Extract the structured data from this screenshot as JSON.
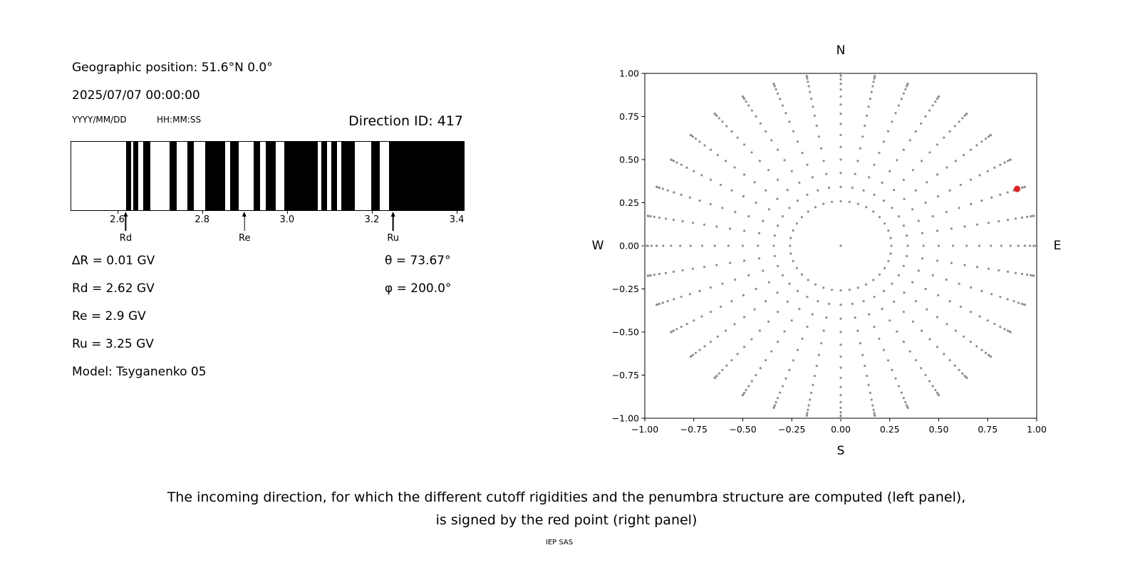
{
  "left_panel": {
    "geo_position": "Geographic position: 51.6°N 0.0°",
    "datetime": "2025/07/07 00:00:00",
    "date_format_label": "YYYY/MM/DD",
    "time_format_label": "HH:MM:SS",
    "direction_id_label": "Direction ID: 417",
    "params_left": [
      "∆R = 0.01 GV",
      "Rd = 2.62 GV",
      "Re = 2.9 GV",
      "Ru = 3.25 GV",
      "Model: Tsyganenko 05"
    ],
    "params_right": [
      "θ = 73.67°",
      "φ = 200.0°"
    ]
  },
  "chart_data": [
    {
      "type": "penumbra_barcode",
      "description": "Cutoff rigidity penumbra structure; black bands on white background",
      "xlim": [
        2.49,
        3.415
      ],
      "x_ticks": [
        {
          "value": 2.6,
          "label": "2.6"
        },
        {
          "value": 2.8,
          "label": "2.8"
        },
        {
          "value": 3.0,
          "label": "3.0"
        },
        {
          "value": 3.2,
          "label": "3.2"
        },
        {
          "value": 3.4,
          "label": "3.4"
        }
      ],
      "black_bands_gv": [
        [
          2.619,
          2.631
        ],
        [
          2.636,
          2.648
        ],
        [
          2.66,
          2.676
        ],
        [
          2.722,
          2.738
        ],
        [
          2.764,
          2.779
        ],
        [
          2.806,
          2.853
        ],
        [
          2.864,
          2.884
        ],
        [
          2.92,
          2.935
        ],
        [
          2.948,
          2.972
        ],
        [
          2.992,
          3.071
        ],
        [
          3.079,
          3.093
        ],
        [
          3.103,
          3.116
        ],
        [
          3.126,
          3.158
        ],
        [
          3.197,
          3.217
        ],
        [
          3.239,
          3.415
        ]
      ],
      "band_color": "#000000",
      "markers": [
        {
          "label": "Rd",
          "x": 2.62
        },
        {
          "label": "Re",
          "x": 2.9
        },
        {
          "label": "Ru",
          "x": 3.25
        }
      ]
    },
    {
      "type": "scatter",
      "description": "Grid of incoming directions on N/E/S/W sky view; selected direction marked in red",
      "xlim": [
        -1,
        1
      ],
      "ylim": [
        -1,
        1
      ],
      "grid": false,
      "compass": {
        "top": "N",
        "bottom": "S",
        "left": "W",
        "right": "E"
      },
      "ticks": [
        {
          "value": -1.0,
          "label": "−1.00"
        },
        {
          "value": -0.75,
          "label": "−0.75"
        },
        {
          "value": -0.5,
          "label": "−0.50"
        },
        {
          "value": -0.25,
          "label": "−0.25"
        },
        {
          "value": 0.0,
          "label": "0.00"
        },
        {
          "value": 0.25,
          "label": "0.25"
        },
        {
          "value": 0.5,
          "label": "0.50"
        },
        {
          "value": 0.75,
          "label": "0.75"
        },
        {
          "value": 1.0,
          "label": "1.00"
        }
      ],
      "grid_dots": {
        "azimuth_start_deg": 0,
        "azimuth_step_deg": 10,
        "azimuth_count": 36,
        "zenith_min_deg": 15,
        "zenith_max_deg": 90,
        "zenith_step_deg": 5,
        "radius": "sin(zenith)",
        "include_center_point": true,
        "color": "#8f8f8f",
        "marker_radius_px": 1.6
      },
      "red_point": {
        "x": 0.9,
        "y": 0.33,
        "theta_deg": 73.67,
        "phi_deg": 200.0,
        "color": "#dd2222",
        "marker_radius_px": 4.5
      }
    }
  ],
  "caption_line1": "The incoming direction, for which the different cutoff rigidities and the penumbra structure are computed (left panel),",
  "caption_line2": "is signed by the red point (right panel)",
  "credit": "IEP SAS"
}
